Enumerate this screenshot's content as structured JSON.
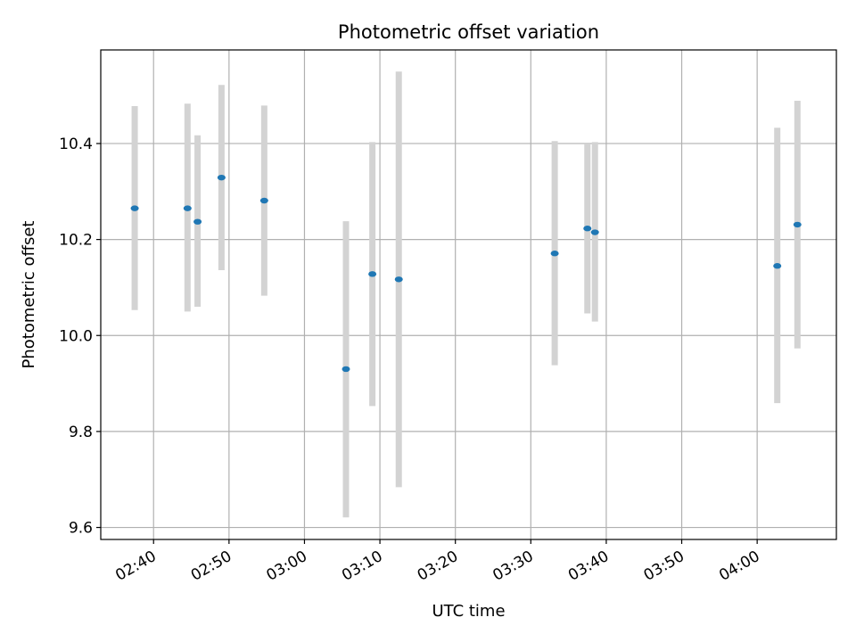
{
  "chart_data": {
    "type": "scatter",
    "title": "Photometric offset variation",
    "xlabel": "UTC time",
    "ylabel": "Photometric offset",
    "xlim": [
      "02:33:00",
      "04:10:30"
    ],
    "ylim": [
      9.575,
      10.595
    ],
    "x_ticks": [
      "02:40",
      "02:50",
      "03:00",
      "03:10",
      "03:20",
      "03:30",
      "03:40",
      "03:50",
      "04:00"
    ],
    "y_ticks": [
      "9.6",
      "9.8",
      "10.0",
      "10.2",
      "10.4"
    ],
    "grid": true,
    "legend": "none",
    "series": [
      {
        "points": [
          {
            "x": "02:37:30",
            "y": 10.265,
            "low": 10.053,
            "high": 10.478
          },
          {
            "x": "02:44:30",
            "y": 10.265,
            "low": 10.05,
            "high": 10.483
          },
          {
            "x": "02:45:50",
            "y": 10.237,
            "low": 10.06,
            "high": 10.417
          },
          {
            "x": "02:49:00",
            "y": 10.329,
            "low": 10.136,
            "high": 10.522
          },
          {
            "x": "02:54:40",
            "y": 10.281,
            "low": 10.083,
            "high": 10.479
          },
          {
            "x": "03:05:30",
            "y": 9.93,
            "low": 9.621,
            "high": 10.238
          },
          {
            "x": "03:09:00",
            "y": 10.128,
            "low": 9.853,
            "high": 10.403
          },
          {
            "x": "03:12:30",
            "y": 10.117,
            "low": 9.684,
            "high": 10.55
          },
          {
            "x": "03:33:10",
            "y": 10.171,
            "low": 9.938,
            "high": 10.405
          },
          {
            "x": "03:37:30",
            "y": 10.223,
            "low": 10.046,
            "high": 10.4
          },
          {
            "x": "03:38:30",
            "y": 10.215,
            "low": 10.029,
            "high": 10.403
          },
          {
            "x": "04:02:40",
            "y": 10.145,
            "low": 9.859,
            "high": 10.433
          },
          {
            "x": "04:05:20",
            "y": 10.231,
            "low": 9.973,
            "high": 10.489
          }
        ]
      }
    ],
    "colors": {
      "marker": "#1f77b4",
      "errorbar": "#d3d3d3",
      "grid": "#b0b0b0",
      "axes": "#000000"
    }
  }
}
